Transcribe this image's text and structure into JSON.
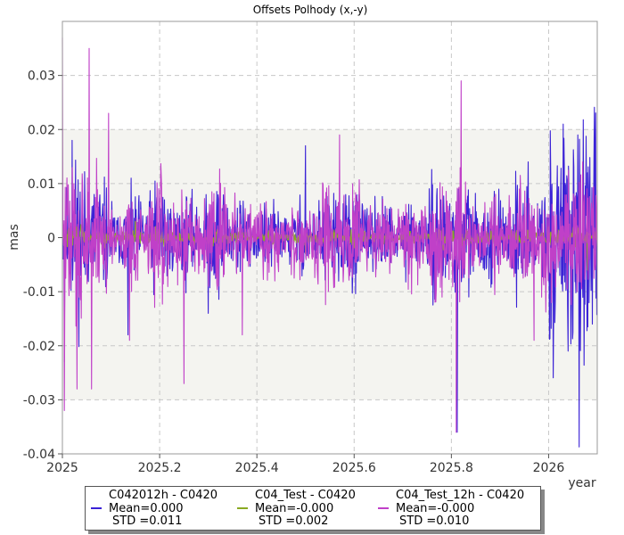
{
  "chart_data": {
    "type": "line",
    "title": "Offsets Polhody (x,-y)",
    "xlabel": "year",
    "ylabel": "mas",
    "xlim": [
      2025.0,
      2026.1
    ],
    "ylim": [
      -0.04,
      0.04
    ],
    "x_ticks": [
      "2025",
      "2025.2",
      "2025.4",
      "2025.6",
      "2025.8",
      "2026"
    ],
    "y_ticks": [
      "0.03",
      "0.02",
      "0.01",
      "0",
      "-0.01",
      "-0.02",
      "-0.03",
      "-0.04"
    ],
    "grid": true,
    "band": [
      -0.03,
      0.02
    ],
    "legend_position": "bottom",
    "series": [
      {
        "name": "C042012h - C0420",
        "color": "#3a22d6",
        "mean": "Mean=0.000",
        "std": "STD =0.011",
        "peaks": [
          {
            "x": 2025.004,
            "y": -0.023
          },
          {
            "x": 2025.02,
            "y": 0.018
          },
          {
            "x": 2025.135,
            "y": -0.018
          },
          {
            "x": 2025.3,
            "y": -0.014
          },
          {
            "x": 2025.5,
            "y": 0.017
          },
          {
            "x": 2025.812,
            "y": -0.036
          },
          {
            "x": 2025.958,
            "y": 0.014
          },
          {
            "x": 2026.03,
            "y": 0.021
          },
          {
            "x": 2026.04,
            "y": -0.021
          },
          {
            "x": 2026.06,
            "y": 0.019
          },
          {
            "x": 2026.08,
            "y": 0.012
          },
          {
            "x": 2026.09,
            "y": -0.016
          }
        ]
      },
      {
        "name": "C04_Test - C0420",
        "color": "#8aaa22",
        "mean": "Mean=-0.000",
        "std": "STD =0.002",
        "peaks": [
          {
            "x": 2025.15,
            "y": 0.003
          },
          {
            "x": 2025.5,
            "y": -0.003
          },
          {
            "x": 2026.0,
            "y": 0.002
          },
          {
            "x": 2026.08,
            "y": -0.006
          }
        ]
      },
      {
        "name": "C04_Test_12h - C0420",
        "color": "#c040c8",
        "mean": "Mean=-0.000",
        "std": "STD =0.010",
        "peaks": [
          {
            "x": 2025.0,
            "y": 0.037
          },
          {
            "x": 2025.004,
            "y": -0.032
          },
          {
            "x": 2025.03,
            "y": -0.028
          },
          {
            "x": 2025.055,
            "y": 0.035
          },
          {
            "x": 2025.06,
            "y": -0.028
          },
          {
            "x": 2025.095,
            "y": 0.023
          },
          {
            "x": 2025.138,
            "y": -0.019
          },
          {
            "x": 2025.25,
            "y": -0.027
          },
          {
            "x": 2025.37,
            "y": -0.018
          },
          {
            "x": 2025.57,
            "y": 0.019
          },
          {
            "x": 2025.81,
            "y": -0.036
          },
          {
            "x": 2025.82,
            "y": 0.029
          },
          {
            "x": 2025.97,
            "y": -0.019
          },
          {
            "x": 2026.07,
            "y": 0.014
          }
        ]
      }
    ]
  }
}
